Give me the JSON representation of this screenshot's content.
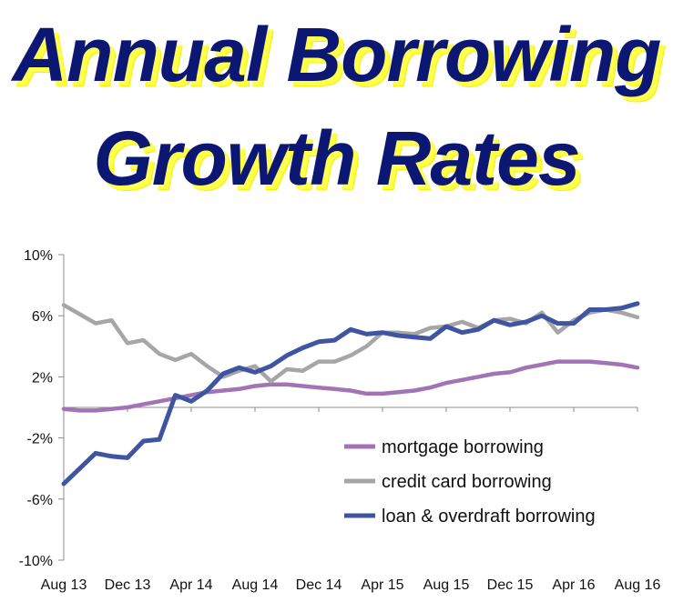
{
  "title": {
    "line1": "Annual Borrowing",
    "line2": "Growth Rates"
  },
  "chart_data": {
    "type": "line",
    "ylim": [
      -10,
      10
    ],
    "y_ticks": [
      -10,
      -6,
      -2,
      2,
      6,
      10
    ],
    "y_tick_labels": [
      "-10%",
      "-6%",
      "-2%",
      "2%",
      "6%",
      "10%"
    ],
    "x_tick_labels": [
      "Aug 13",
      "Dec 13",
      "Apr 14",
      "Aug 14",
      "Dec 14",
      "Apr 15",
      "Aug 15",
      "Dec 15",
      "Apr 16",
      "Aug 16"
    ],
    "grid": false,
    "legend_position": "bottom-right",
    "series": [
      {
        "name": "mortgage borrowing",
        "color": "#a374b5",
        "values": [
          -0.1,
          -0.2,
          -0.2,
          -0.1,
          0.0,
          0.2,
          0.4,
          0.6,
          0.8,
          1.0,
          1.1,
          1.2,
          1.4,
          1.5,
          1.5,
          1.4,
          1.3,
          1.2,
          1.1,
          0.9,
          0.9,
          1.0,
          1.1,
          1.3,
          1.6,
          1.8,
          2.0,
          2.2,
          2.3,
          2.6,
          2.8,
          3.0,
          3.0,
          3.0,
          2.9,
          2.8,
          2.6
        ]
      },
      {
        "name": "credit card borrowing",
        "color": "#a6a6a6",
        "values": [
          6.7,
          6.1,
          5.5,
          5.7,
          4.2,
          4.4,
          3.5,
          3.1,
          3.5,
          2.7,
          2.0,
          2.4,
          2.7,
          1.7,
          2.5,
          2.4,
          3.0,
          3.0,
          3.4,
          4.0,
          4.9,
          4.9,
          4.8,
          5.2,
          5.3,
          5.6,
          5.2,
          5.7,
          5.8,
          5.5,
          6.2,
          4.9,
          5.7,
          6.2,
          6.4,
          6.2,
          5.9
        ]
      },
      {
        "name": "loan & overdraft borrowing",
        "color": "#3f55a2",
        "values": [
          -5.0,
          -4.0,
          -3.0,
          -3.2,
          -3.3,
          -2.2,
          -2.1,
          0.8,
          0.4,
          1.1,
          2.2,
          2.6,
          2.3,
          2.7,
          3.4,
          3.9,
          4.3,
          4.4,
          5.1,
          4.8,
          4.9,
          4.7,
          4.6,
          4.5,
          5.3,
          4.9,
          5.1,
          5.7,
          5.4,
          5.6,
          6.0,
          5.5,
          5.5,
          6.4,
          6.4,
          6.5,
          6.8
        ]
      }
    ]
  }
}
